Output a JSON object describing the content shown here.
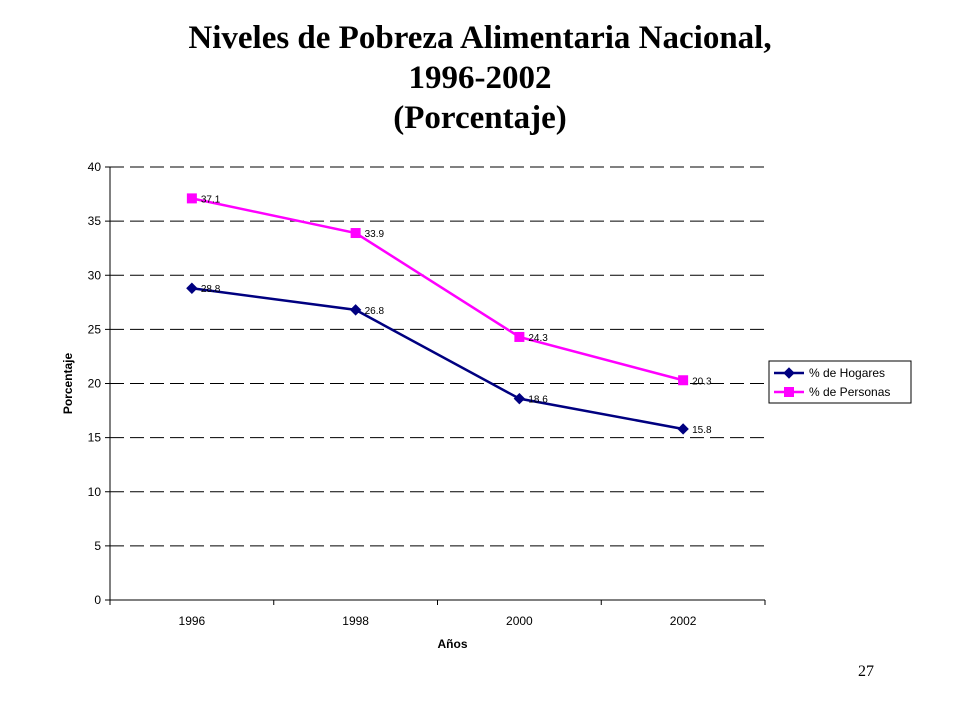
{
  "slide": {
    "title_line1": "Niveles de Pobreza  Alimentaria  Nacional,",
    "title_line2": "1996-2002",
    "title_line3": "(Porcentaje)",
    "page_number": "27"
  },
  "chart_data": {
    "type": "line",
    "title": "Niveles de Pobreza  Alimentaria  Nacional, 1996-2002 (Porcentaje)",
    "xlabel": "Años",
    "ylabel": "Porcentaje",
    "categories": [
      "1996",
      "1998",
      "2000",
      "2002"
    ],
    "ylim": [
      0,
      40
    ],
    "yticks": [
      0,
      5,
      10,
      15,
      20,
      25,
      30,
      35,
      40
    ],
    "grid": "dashed-horizontal",
    "legend_position": "right",
    "series": [
      {
        "name": "% de Hogares",
        "values": [
          28.8,
          26.8,
          18.6,
          15.8
        ],
        "labels": [
          "28.8",
          "26.8",
          "18.6",
          "15.8"
        ],
        "color": "#000080",
        "marker": "diamond"
      },
      {
        "name": "% de Personas",
        "values": [
          37.1,
          33.9,
          24.3,
          20.3
        ],
        "labels": [
          "37.1",
          "33.9",
          "24.3",
          "20.3"
        ],
        "color": "#FF00FF",
        "marker": "square"
      }
    ]
  }
}
